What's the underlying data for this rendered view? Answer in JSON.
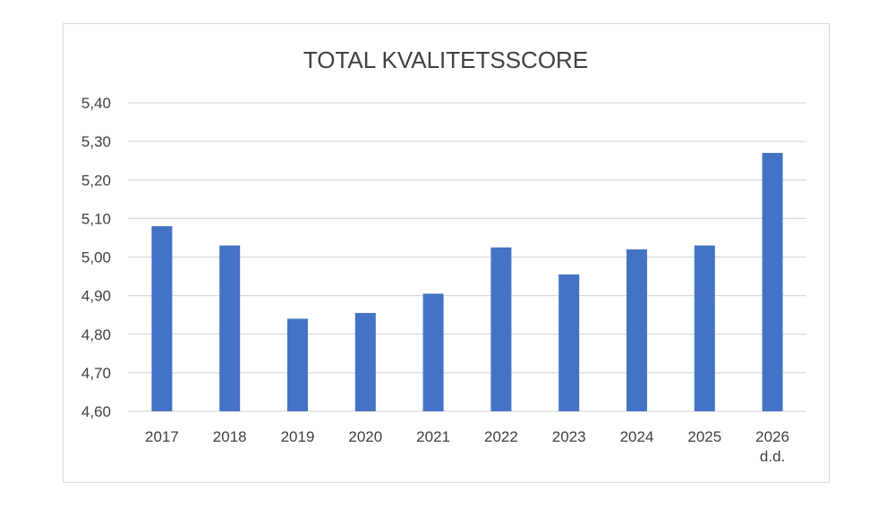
{
  "chart_data": {
    "type": "bar",
    "title": "TOTAL KVALITETSSCORE",
    "xlabel": "",
    "ylabel": "",
    "categories": [
      [
        "2017"
      ],
      [
        "2018"
      ],
      [
        "2019"
      ],
      [
        "2020"
      ],
      [
        "2021"
      ],
      [
        "2022"
      ],
      [
        "2023"
      ],
      [
        "2024"
      ],
      [
        "2025"
      ],
      [
        "2026",
        "d.d."
      ]
    ],
    "values": [
      5.08,
      5.03,
      4.84,
      4.855,
      4.905,
      5.025,
      4.955,
      5.02,
      5.03,
      5.27
    ],
    "ylim": [
      4.6,
      5.4
    ],
    "yticks": [
      "4,60",
      "4,70",
      "4,80",
      "4,90",
      "5,00",
      "5,10",
      "5,20",
      "5,30",
      "5,40"
    ],
    "grid": true,
    "legend": "none",
    "colors": {
      "bar": "#4472C4",
      "grid": "#d9d9d9",
      "text": "#404040"
    }
  }
}
